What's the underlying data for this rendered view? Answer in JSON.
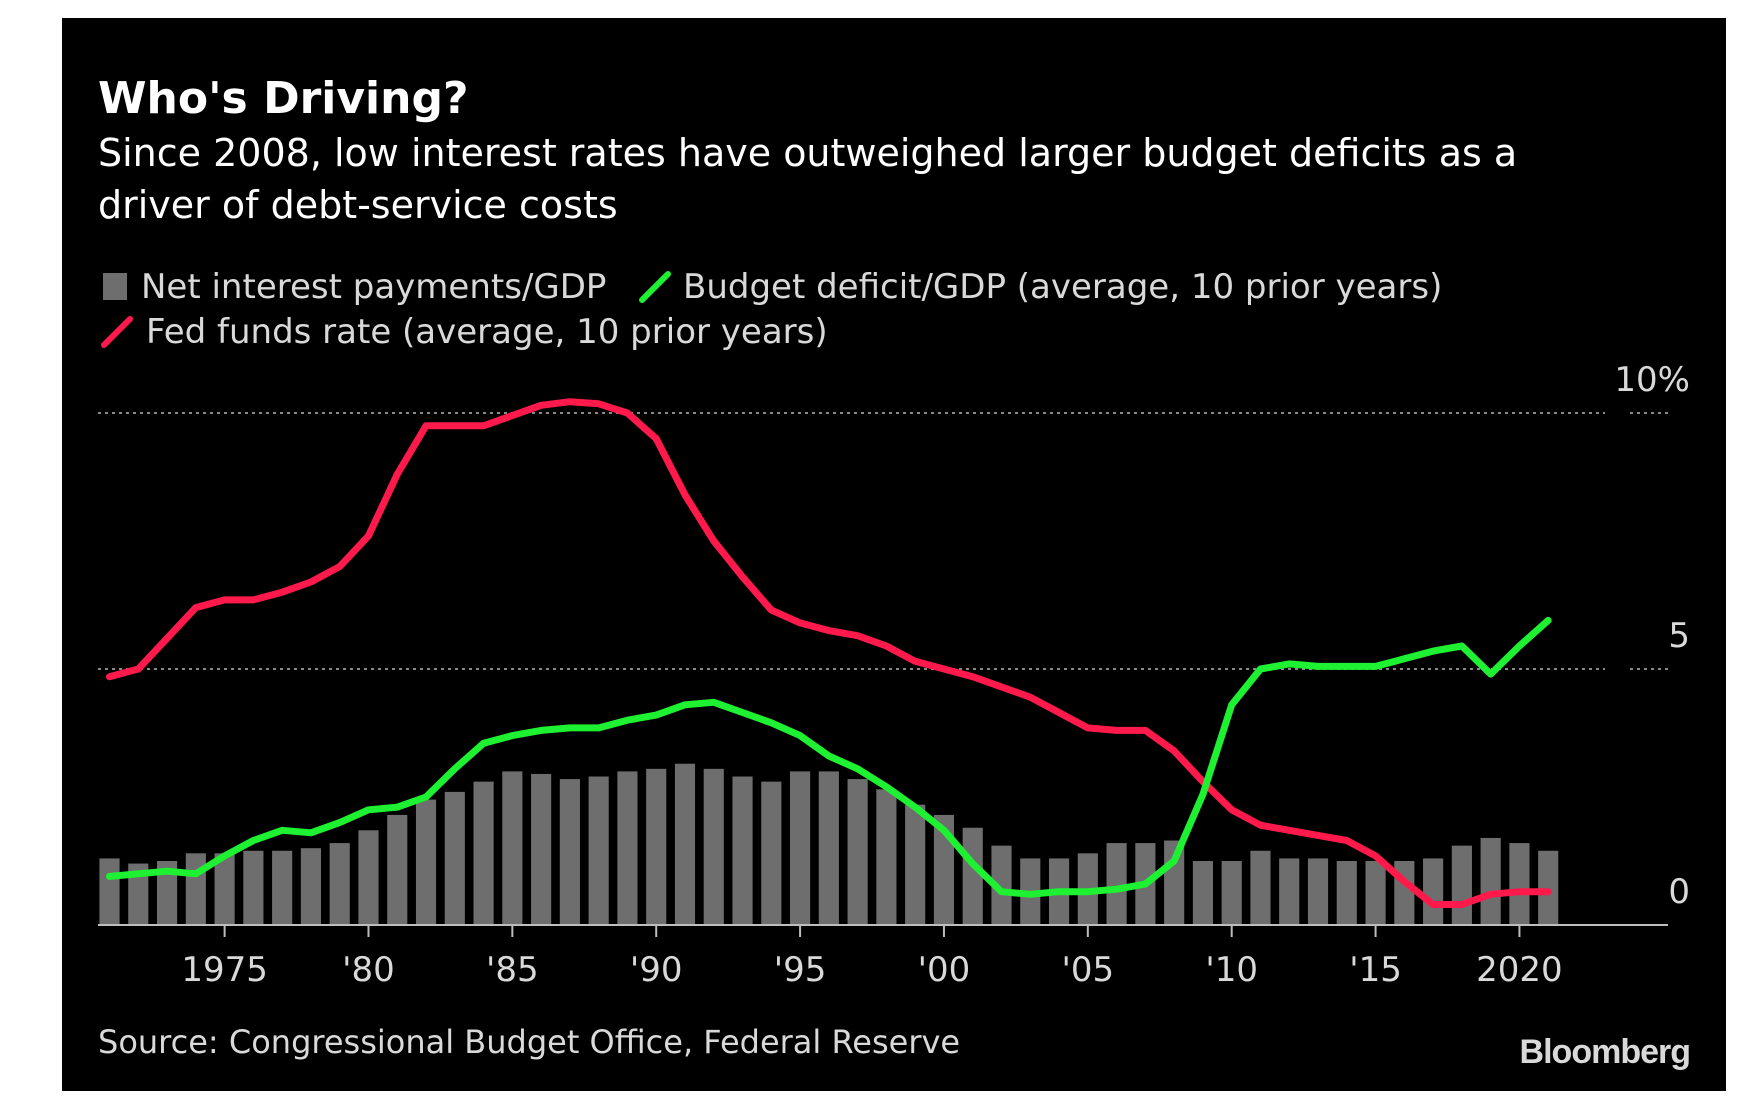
{
  "chart_data": {
    "type": "bar",
    "title": "Who's Driving?",
    "subtitle_lines": [
      "Since 2008, low interest rates have outweighed larger budget deficits as a",
      "driver of debt-service costs"
    ],
    "legend": {
      "bars": "Net interest payments/GDP",
      "budget": "Budget deficit/GDP (average, 10 prior years)",
      "fed": "Fed funds rate (average, 10 prior years)"
    },
    "y_ticks": [
      {
        "value": 10,
        "label": "10%"
      },
      {
        "value": 5,
        "label": "5"
      },
      {
        "value": 0,
        "label": "0"
      }
    ],
    "x_ticks": [
      {
        "year": 1975,
        "label": "1975"
      },
      {
        "year": 1980,
        "label": "'80"
      },
      {
        "year": 1985,
        "label": "'85"
      },
      {
        "year": 1990,
        "label": "'90"
      },
      {
        "year": 1995,
        "label": "'95"
      },
      {
        "year": 2000,
        "label": "'00"
      },
      {
        "year": 2005,
        "label": "'05"
      },
      {
        "year": 2010,
        "label": "'10"
      },
      {
        "year": 2015,
        "label": "'15"
      },
      {
        "year": 2020,
        "label": "2020"
      }
    ],
    "ylim": [
      0,
      10
    ],
    "xlim": [
      1970.6,
      2022.8
    ],
    "grid": true,
    "colors": {
      "bars": "#6e6e6e",
      "budget": "#1ef032",
      "fed": "#ff1a4b",
      "grid": "#8a8a8a",
      "background": "#000000",
      "text": "#d9d9d9"
    },
    "bars": {
      "x": [
        1971,
        1972,
        1973,
        1974,
        1975,
        1976,
        1977,
        1978,
        1979,
        1980,
        1981,
        1982,
        1983,
        1984,
        1985,
        1986,
        1987,
        1988,
        1989,
        1990,
        1991,
        1992,
        1993,
        1994,
        1995,
        1996,
        1997,
        1998,
        1999,
        2000,
        2001,
        2002,
        2003,
        2004,
        2005,
        2006,
        2007,
        2008,
        2009,
        2010,
        2011,
        2012,
        2013,
        2014,
        2015,
        2016,
        2017,
        2018,
        2019,
        2020,
        2021
      ],
      "values": [
        1.3,
        1.2,
        1.25,
        1.4,
        1.4,
        1.45,
        1.45,
        1.5,
        1.6,
        1.85,
        2.15,
        2.45,
        2.6,
        2.8,
        3.0,
        2.95,
        2.85,
        2.9,
        3.0,
        3.05,
        3.15,
        3.05,
        2.9,
        2.8,
        3.0,
        3.0,
        2.85,
        2.65,
        2.35,
        2.15,
        1.9,
        1.55,
        1.3,
        1.3,
        1.4,
        1.6,
        1.6,
        1.65,
        1.25,
        1.25,
        1.45,
        1.3,
        1.3,
        1.25,
        1.25,
        1.25,
        1.3,
        1.55,
        1.7,
        1.6,
        1.45
      ]
    },
    "series": [
      {
        "name": "Fed funds rate (average, 10 prior years)",
        "x": [
          1971,
          1972,
          1973,
          1974,
          1975,
          1976,
          1977,
          1978,
          1979,
          1980,
          1981,
          1982,
          1983,
          1984,
          1985,
          1986,
          1987,
          1988,
          1989,
          1990,
          1991,
          1992,
          1993,
          1994,
          1995,
          1996,
          1997,
          1998,
          1999,
          2000,
          2001,
          2002,
          2003,
          2004,
          2005,
          2006,
          2007,
          2008,
          2009,
          2010,
          2011,
          2012,
          2013,
          2014,
          2015,
          2016,
          2017,
          2018,
          2019,
          2020,
          2021
        ],
        "values": [
          4.85,
          5.0,
          5.6,
          6.2,
          6.35,
          6.35,
          6.5,
          6.7,
          7.0,
          7.6,
          8.8,
          9.75,
          9.75,
          9.75,
          9.95,
          10.15,
          10.22,
          10.18,
          10.0,
          9.5,
          8.4,
          7.5,
          6.8,
          6.15,
          5.9,
          5.75,
          5.65,
          5.45,
          5.15,
          5.0,
          4.85,
          4.65,
          4.45,
          4.15,
          3.85,
          3.8,
          3.8,
          3.4,
          2.8,
          2.25,
          1.95,
          1.85,
          1.75,
          1.65,
          1.35,
          0.85,
          0.4,
          0.4,
          0.6,
          0.65,
          0.65
        ]
      },
      {
        "name": "Budget deficit/GDP (average, 10 prior years)",
        "x": [
          1971,
          1972,
          1973,
          1974,
          1975,
          1976,
          1977,
          1978,
          1979,
          1980,
          1981,
          1982,
          1983,
          1984,
          1985,
          1986,
          1987,
          1988,
          1989,
          1990,
          1991,
          1992,
          1993,
          1994,
          1995,
          1996,
          1997,
          1998,
          1999,
          2000,
          2001,
          2002,
          2003,
          2004,
          2005,
          2006,
          2007,
          2008,
          2009,
          2010,
          2011,
          2012,
          2013,
          2014,
          2015,
          2016,
          2017,
          2018,
          2019,
          2020,
          2021
        ],
        "values": [
          0.95,
          1.0,
          1.05,
          1.0,
          1.35,
          1.65,
          1.85,
          1.8,
          2.0,
          2.25,
          2.3,
          2.5,
          3.05,
          3.55,
          3.7,
          3.8,
          3.85,
          3.85,
          4.0,
          4.1,
          4.3,
          4.35,
          4.15,
          3.95,
          3.7,
          3.3,
          3.05,
          2.7,
          2.3,
          1.85,
          1.2,
          0.65,
          0.6,
          0.65,
          0.65,
          0.7,
          0.8,
          1.25,
          2.55,
          4.3,
          5.0,
          5.1,
          5.05,
          5.05,
          5.05,
          5.2,
          5.35,
          5.45,
          4.9,
          5.45,
          5.95
        ]
      }
    ],
    "source": "Source: Congressional Budget Office, Federal Reserve",
    "brand": "Bloomberg"
  }
}
